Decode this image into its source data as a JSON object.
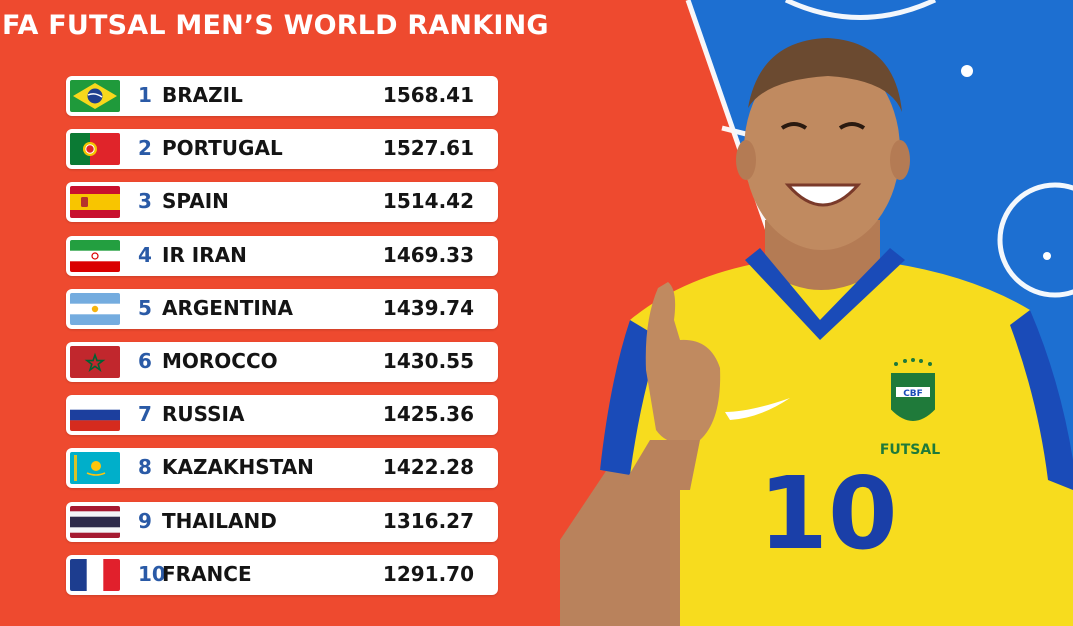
{
  "title": "FA FUTSAL MEN’S WORLD RANKING",
  "colors": {
    "background_red": "#ee4a2f",
    "court_blue": "#1d6fd1",
    "rank_blue": "#2a5aa6",
    "jersey_yellow": "#f7dc1e",
    "jersey_blue": "#1a4bb8"
  },
  "ranking": [
    {
      "rank": "1",
      "country": "BRAZIL",
      "points": "1568.41",
      "flag": "brazil-flag-icon"
    },
    {
      "rank": "2",
      "country": "PORTUGAL",
      "points": "1527.61",
      "flag": "portugal-flag-icon"
    },
    {
      "rank": "3",
      "country": "SPAIN",
      "points": "1514.42",
      "flag": "spain-flag-icon"
    },
    {
      "rank": "4",
      "country": "IR IRAN",
      "points": "1469.33",
      "flag": "iran-flag-icon"
    },
    {
      "rank": "5",
      "country": "ARGENTINA",
      "points": "1439.74",
      "flag": "argentina-flag-icon"
    },
    {
      "rank": "6",
      "country": "MOROCCO",
      "points": "1430.55",
      "flag": "morocco-flag-icon"
    },
    {
      "rank": "7",
      "country": "RUSSIA",
      "points": "1425.36",
      "flag": "russia-flag-icon"
    },
    {
      "rank": "8",
      "country": "KAZAKHSTAN",
      "points": "1422.28",
      "flag": "kazakhstan-flag-icon"
    },
    {
      "rank": "9",
      "country": "THAILAND",
      "points": "1316.27",
      "flag": "thailand-flag-icon"
    },
    {
      "rank": "10",
      "country": "FRANCE",
      "points": "1291.70",
      "flag": "france-flag-icon"
    }
  ],
  "player": {
    "crest_text": "CBF",
    "jersey_label": "FUTSAL",
    "jersey_number": "10"
  }
}
